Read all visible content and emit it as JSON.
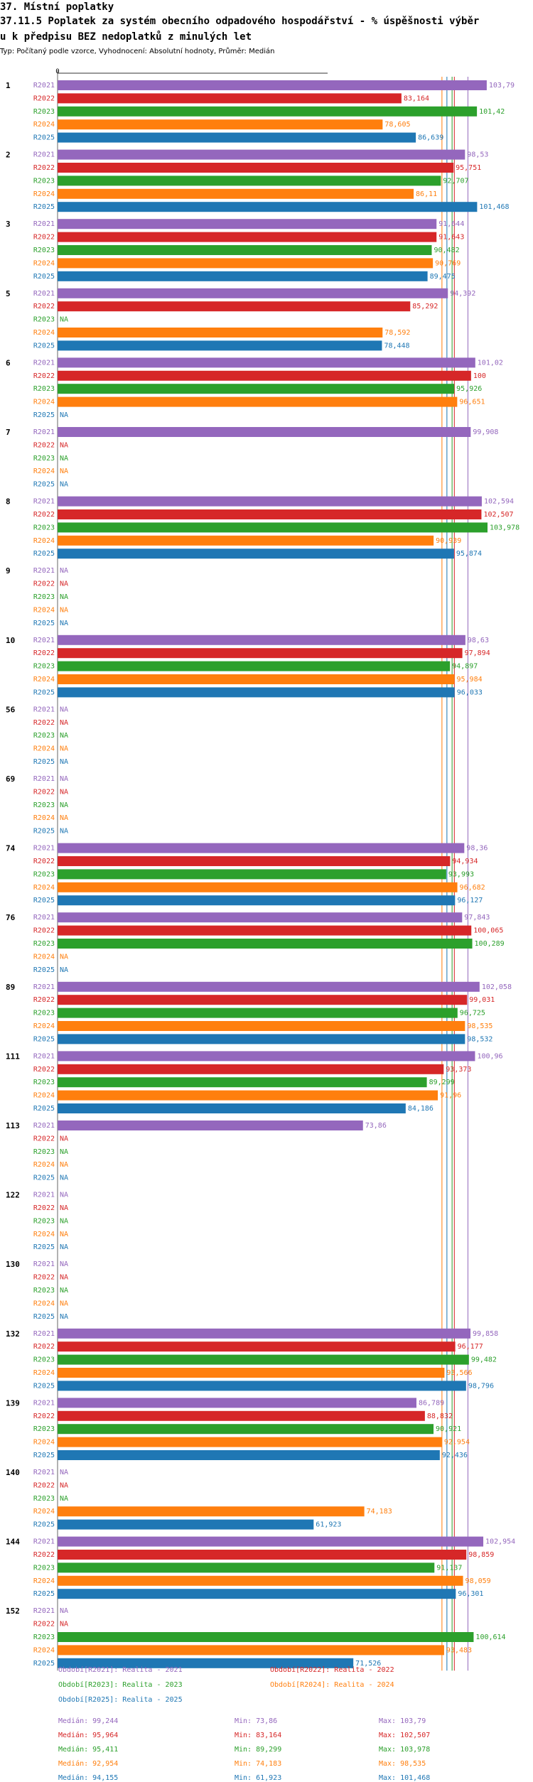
{
  "header": {
    "line1": "37. Místní poplatky",
    "line2": "37.11.5 Poplatek za systém obecního odpadového hospodářství  - % úspěšnosti výběr",
    "line3": "u k předpisu BEZ nedoplatků z minulých let",
    "info": "Typ: Počítaný podle vzorce, Vyhodnocení: Absolutní hodnoty, Průměr: Medián"
  },
  "chart_data": {
    "type": "bar",
    "orientation": "horizontal",
    "axis_zero_label": "0",
    "xlim": [
      0,
      103.978
    ],
    "na_label": "NA",
    "series": [
      {
        "key": "R2021",
        "color": "#9467bd"
      },
      {
        "key": "R2022",
        "color": "#d62728"
      },
      {
        "key": "R2023",
        "color": "#2ca02c"
      },
      {
        "key": "R2024",
        "color": "#ff7f0e"
      },
      {
        "key": "R2025",
        "color": "#1f77b4"
      }
    ],
    "groups": [
      {
        "id": "1",
        "values": [
          "103,79",
          "83,164",
          "101,42",
          "78,605",
          "86,639"
        ]
      },
      {
        "id": "2",
        "values": [
          "98,53",
          "95,751",
          "92,707",
          "86,11",
          "101,468"
        ]
      },
      {
        "id": "3",
        "values": [
          "91,644",
          "91,643",
          "90,482",
          "90,769",
          "89,475"
        ]
      },
      {
        "id": "5",
        "values": [
          "94,392",
          "85,292",
          null,
          "78,592",
          "78,448"
        ]
      },
      {
        "id": "6",
        "values": [
          "101,02",
          "100",
          "95,926",
          "96,651",
          null
        ]
      },
      {
        "id": "7",
        "values": [
          "99,908",
          null,
          null,
          null,
          null
        ]
      },
      {
        "id": "8",
        "values": [
          "102,594",
          "102,507",
          "103,978",
          "90,939",
          "95,874"
        ]
      },
      {
        "id": "9",
        "values": [
          null,
          null,
          null,
          null,
          null
        ]
      },
      {
        "id": "10",
        "values": [
          "98,63",
          "97,894",
          "94,897",
          "95,984",
          "96,033"
        ]
      },
      {
        "id": "56",
        "values": [
          null,
          null,
          null,
          null,
          null
        ]
      },
      {
        "id": "69",
        "values": [
          null,
          null,
          null,
          null,
          null
        ]
      },
      {
        "id": "74",
        "values": [
          "98,36",
          "94,934",
          "93,993",
          "96,682",
          "96,127"
        ]
      },
      {
        "id": "76",
        "values": [
          "97,843",
          "100,065",
          "100,289",
          null,
          null
        ]
      },
      {
        "id": "89",
        "values": [
          "102,058",
          "99,031",
          "96,725",
          "98,535",
          "98,532"
        ]
      },
      {
        "id": "111",
        "values": [
          "100,96",
          "93,373",
          "89,299",
          "91,96",
          "84,186"
        ]
      },
      {
        "id": "113",
        "values": [
          "73,86",
          null,
          null,
          null,
          null
        ]
      },
      {
        "id": "122",
        "values": [
          null,
          null,
          null,
          null,
          null
        ]
      },
      {
        "id": "130",
        "values": [
          null,
          null,
          null,
          null,
          null
        ]
      },
      {
        "id": "132",
        "values": [
          "99,858",
          "96,177",
          "99,482",
          "93,566",
          "98,796"
        ]
      },
      {
        "id": "139",
        "values": [
          "86,789",
          "88,832",
          "90,921",
          "92,954",
          "92,436"
        ]
      },
      {
        "id": "140",
        "values": [
          null,
          null,
          null,
          "74,183",
          "61,923"
        ]
      },
      {
        "id": "144",
        "values": [
          "102,954",
          "98,859",
          "91,137",
          "98,059",
          "96,301"
        ]
      },
      {
        "id": "152",
        "values": [
          null,
          null,
          "100,614",
          "93,483",
          "71,526"
        ]
      }
    ],
    "median_lines": [
      {
        "key": "R2021",
        "value": 99.244
      },
      {
        "key": "R2022",
        "value": 95.964
      },
      {
        "key": "R2023",
        "value": 95.411
      },
      {
        "key": "R2024",
        "value": 92.954
      },
      {
        "key": "R2025",
        "value": 94.155
      }
    ]
  },
  "legend": {
    "entries": [
      {
        "text": "Období[R2021]: Realita - 2021",
        "color": "#9467bd"
      },
      {
        "text": "Období[R2022]: Realita - 2022",
        "color": "#d62728"
      },
      {
        "text": "Období[R2023]: Realita - 2023",
        "color": "#2ca02c"
      },
      {
        "text": "Období[R2024]: Realita - 2024",
        "color": "#ff7f0e"
      },
      {
        "text": "Období[R2025]: Realita - 2025",
        "color": "#1f77b4"
      }
    ],
    "stats": [
      {
        "median": "Medián: 99,244",
        "min": "Min: 73,86",
        "max": "Max: 103,79",
        "color": "#9467bd"
      },
      {
        "median": "Medián: 95,964",
        "min": "Min: 83,164",
        "max": "Max: 102,507",
        "color": "#d62728"
      },
      {
        "median": "Medián: 95,411",
        "min": "Min: 89,299",
        "max": "Max: 103,978",
        "color": "#2ca02c"
      },
      {
        "median": "Medián: 92,954",
        "min": "Min: 74,183",
        "max": "Max: 98,535",
        "color": "#ff7f0e"
      },
      {
        "median": "Medián: 94,155",
        "min": "Min: 61,923",
        "max": "Max: 101,468",
        "color": "#1f77b4"
      }
    ]
  }
}
